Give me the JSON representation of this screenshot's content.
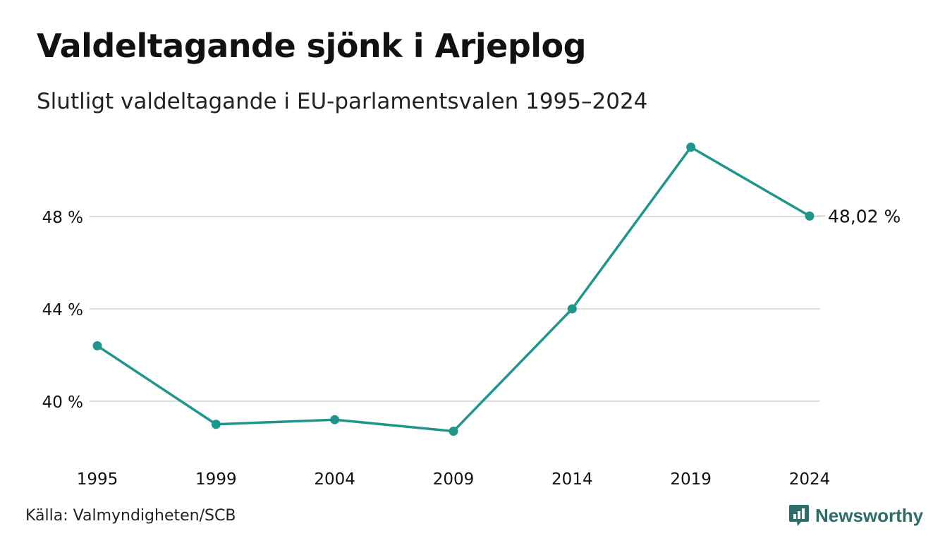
{
  "title": "Valdeltagande sjönk i Arjeplog",
  "subtitle": "Slutligt valdeltagande i EU-parlamentsvalen 1995–2024",
  "source": "Källa: Valmyndigheten/SCB",
  "brand": {
    "name": "Newsworthy",
    "icon": "newsworthy-logo-icon",
    "color": "#2d6e68"
  },
  "colors": {
    "line": "#1f968b",
    "grid": "#dddddd",
    "text": "#111111"
  },
  "chart_data": {
    "type": "line",
    "title": "Valdeltagande sjönk i Arjeplog",
    "subtitle": "Slutligt valdeltagande i EU-parlamentsvalen 1995–2024",
    "xlabel": "",
    "ylabel": "",
    "grid": true,
    "legend": "none",
    "x": [
      "1995",
      "1999",
      "2004",
      "2009",
      "2014",
      "2019",
      "2024"
    ],
    "ylim": [
      37.4,
      51.5
    ],
    "yticks": [
      40,
      44,
      48
    ],
    "ytick_labels": [
      "40 %",
      "44 %",
      "48 %"
    ],
    "series": [
      {
        "values": [
          42.4,
          39.0,
          39.2,
          38.7,
          44.0,
          51.0,
          48.02
        ]
      }
    ],
    "end_label": "48,02 %"
  }
}
